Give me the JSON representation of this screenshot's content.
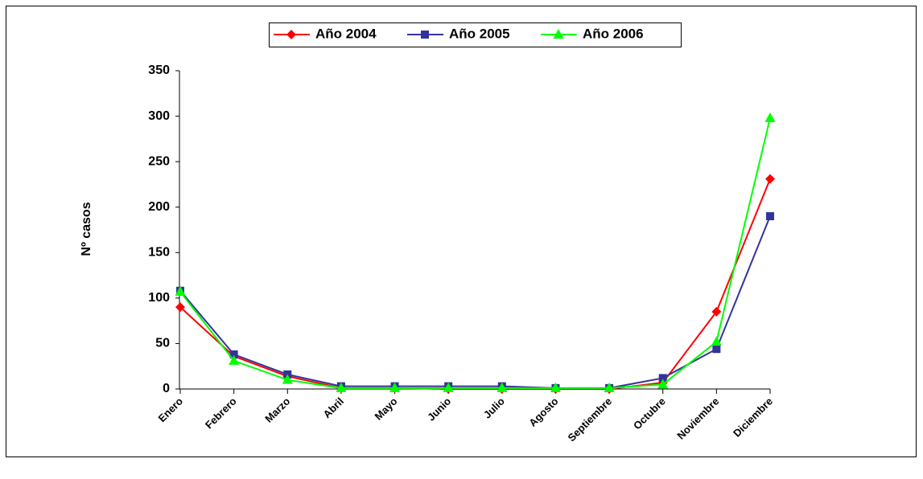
{
  "chart_data": {
    "type": "line",
    "y_label": "Nº casos",
    "categories": [
      "Enero",
      "Febrero",
      "Marzo",
      "Abril",
      "Mayo",
      "Junio",
      "Julio",
      "Agosto",
      "Septiembre",
      "Octubre",
      "Noviembre",
      "Diciembre"
    ],
    "series": [
      {
        "name": "Año 2004",
        "color": "#ff0000",
        "marker": "diamond",
        "values": [
          90,
          36,
          14,
          1,
          1,
          0,
          0,
          0,
          0,
          7,
          85,
          231
        ]
      },
      {
        "name": "Año 2005",
        "color": "#333399",
        "marker": "square",
        "values": [
          108,
          38,
          16,
          3,
          3,
          3,
          3,
          1,
          1,
          12,
          44,
          190
        ]
      },
      {
        "name": "Año 2006",
        "color": "#00ff00",
        "marker": "triangle",
        "values": [
          107,
          31,
          10,
          1,
          1,
          1,
          1,
          1,
          1,
          5,
          52,
          298
        ]
      }
    ],
    "ylim": [
      0,
      350
    ],
    "yticks": [
      0,
      50,
      100,
      150,
      200,
      250,
      300,
      350
    ],
    "grid": false,
    "legend": "top"
  }
}
